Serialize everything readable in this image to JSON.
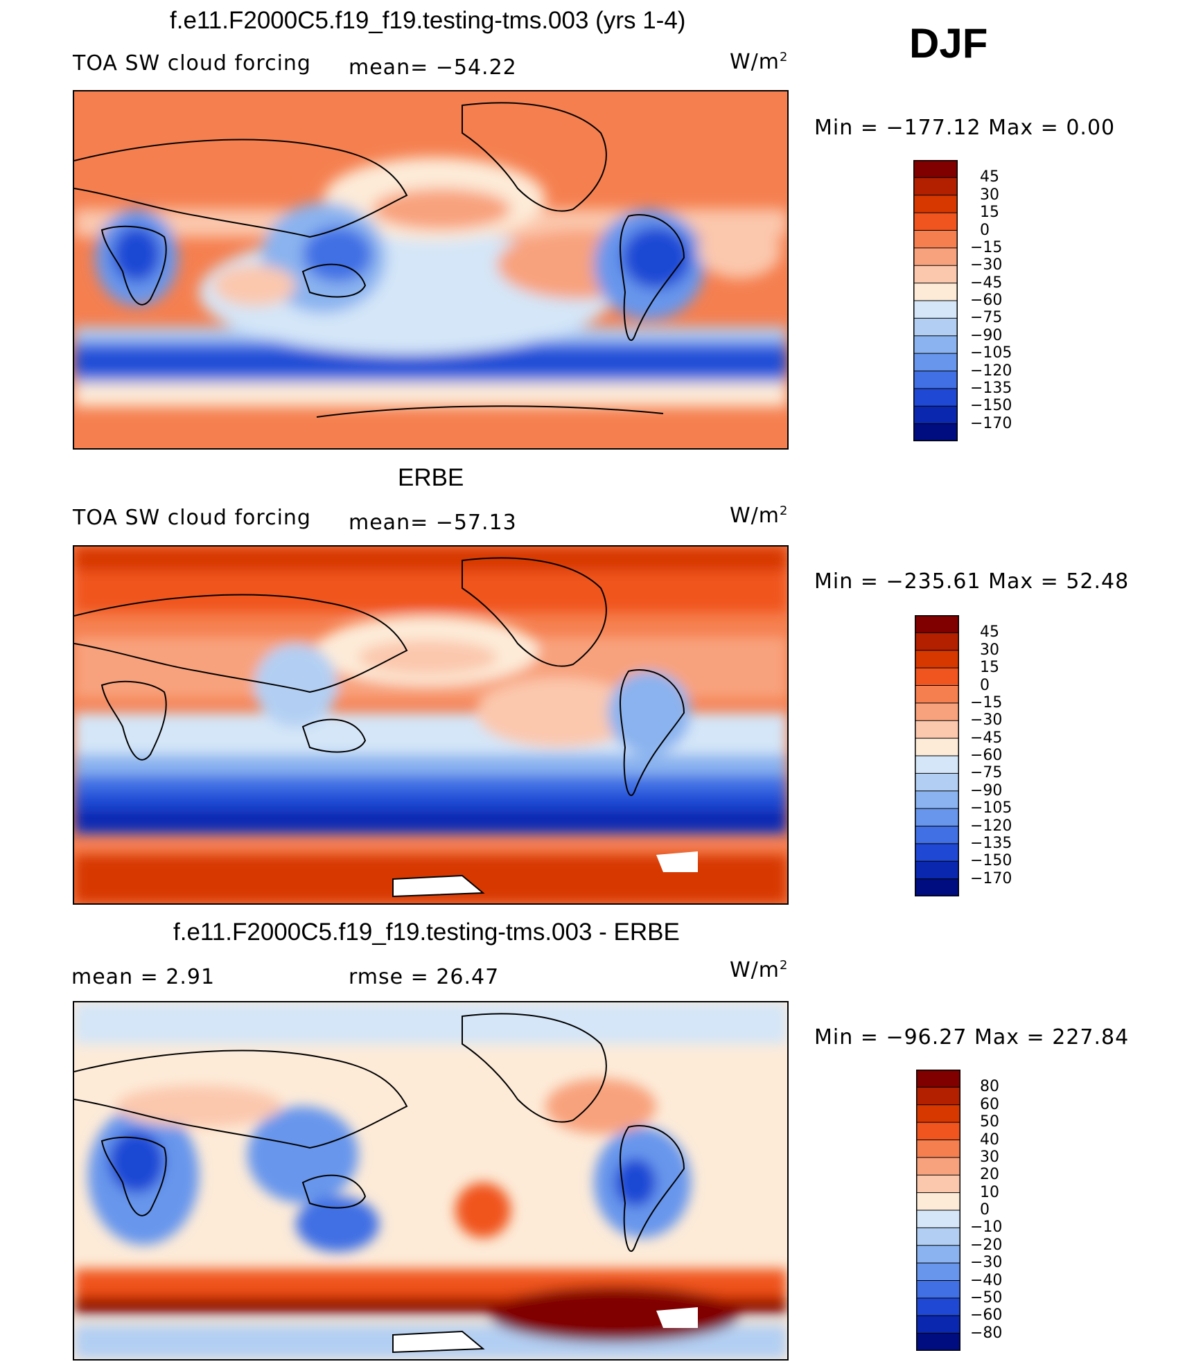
{
  "season": "DJF",
  "panels": [
    {
      "id": "model",
      "title": "f.e11.F2000C5.f19_f19.testing-tms.003 (yrs 1-4)",
      "left_label": "TOA SW cloud forcing",
      "mid_label": "mean= −54.22",
      "units_base": "W/m",
      "units_exp": "2",
      "range_text": "Min  =  −177.12  Max  =      0.00",
      "colorbar": {
        "levels": [
          "45",
          "30",
          "15",
          "0",
          "−15",
          "−30",
          "−45",
          "−60",
          "−75",
          "−90",
          "−105",
          "−120",
          "−135",
          "−150",
          "−170"
        ],
        "colors": [
          "#800000",
          "#b22000",
          "#d73800",
          "#f0541f",
          "#f57f4f",
          "#f8a27d",
          "#fbc8ad",
          "#fdebd8",
          "#d4e6f8",
          "#b2cff3",
          "#8ab3ef",
          "#6796ec",
          "#416fe4",
          "#1f48d4",
          "#0a27b0",
          "#000d80"
        ]
      }
    },
    {
      "id": "obs",
      "title": "ERBE",
      "left_label": "TOA SW cloud forcing",
      "mid_label": "mean= −57.13",
      "units_base": "W/m",
      "units_exp": "2",
      "range_text": "Min  =  −235.61  Max  =    52.48",
      "colorbar": {
        "levels": [
          "45",
          "30",
          "15",
          "0",
          "−15",
          "−30",
          "−45",
          "−60",
          "−75",
          "−90",
          "−105",
          "−120",
          "−135",
          "−150",
          "−170"
        ],
        "colors": [
          "#800000",
          "#b22000",
          "#d73800",
          "#f0541f",
          "#f57f4f",
          "#f8a27d",
          "#fbc8ad",
          "#fdebd8",
          "#d4e6f8",
          "#b2cff3",
          "#8ab3ef",
          "#6796ec",
          "#416fe4",
          "#1f48d4",
          "#0a27b0",
          "#000d80"
        ]
      }
    },
    {
      "id": "diff",
      "title": "f.e11.F2000C5.f19_f19.testing-tms.003 - ERBE",
      "left_label": "mean =     2.91",
      "mid_label": "rmse  =    26.47",
      "units_base": "W/m",
      "units_exp": "2",
      "range_text": "Min  =  −96.27  Max  =  227.84",
      "colorbar": {
        "levels": [
          "80",
          "60",
          "50",
          "40",
          "30",
          "20",
          "10",
          "0",
          "−10",
          "−20",
          "−30",
          "−40",
          "−50",
          "−60",
          "−80"
        ],
        "colors": [
          "#800000",
          "#b22000",
          "#d73800",
          "#f0541f",
          "#f57f4f",
          "#f8a27d",
          "#fbc8ad",
          "#fdebd8",
          "#d4e6f8",
          "#b2cff3",
          "#8ab3ef",
          "#6796ec",
          "#416fe4",
          "#1f48d4",
          "#0a27b0",
          "#000d80"
        ]
      }
    }
  ],
  "chart_data": [
    {
      "type": "heatmap",
      "title": "f.e11.F2000C5.f19_f19.testing-tms.003 (yrs 1-4)",
      "variable": "TOA SW cloud forcing",
      "season": "DJF",
      "mean": -54.22,
      "min": -177.12,
      "max": 0.0,
      "units": "W/m2",
      "contour_levels": [
        45,
        30,
        15,
        0,
        -15,
        -30,
        -45,
        -60,
        -75,
        -90,
        -105,
        -120,
        -135,
        -150,
        -170
      ]
    },
    {
      "type": "heatmap",
      "title": "ERBE",
      "variable": "TOA SW cloud forcing",
      "season": "DJF",
      "mean": -57.13,
      "min": -235.61,
      "max": 52.48,
      "units": "W/m2",
      "contour_levels": [
        45,
        30,
        15,
        0,
        -15,
        -30,
        -45,
        -60,
        -75,
        -90,
        -105,
        -120,
        -135,
        -150,
        -170
      ]
    },
    {
      "type": "heatmap",
      "title": "f.e11.F2000C5.f19_f19.testing-tms.003 - ERBE",
      "season": "DJF",
      "mean": 2.91,
      "rmse": 26.47,
      "min": -96.27,
      "max": 227.84,
      "units": "W/m2",
      "contour_levels": [
        80,
        60,
        50,
        40,
        30,
        20,
        10,
        0,
        -10,
        -20,
        -30,
        -40,
        -50,
        -60,
        -80
      ]
    }
  ]
}
